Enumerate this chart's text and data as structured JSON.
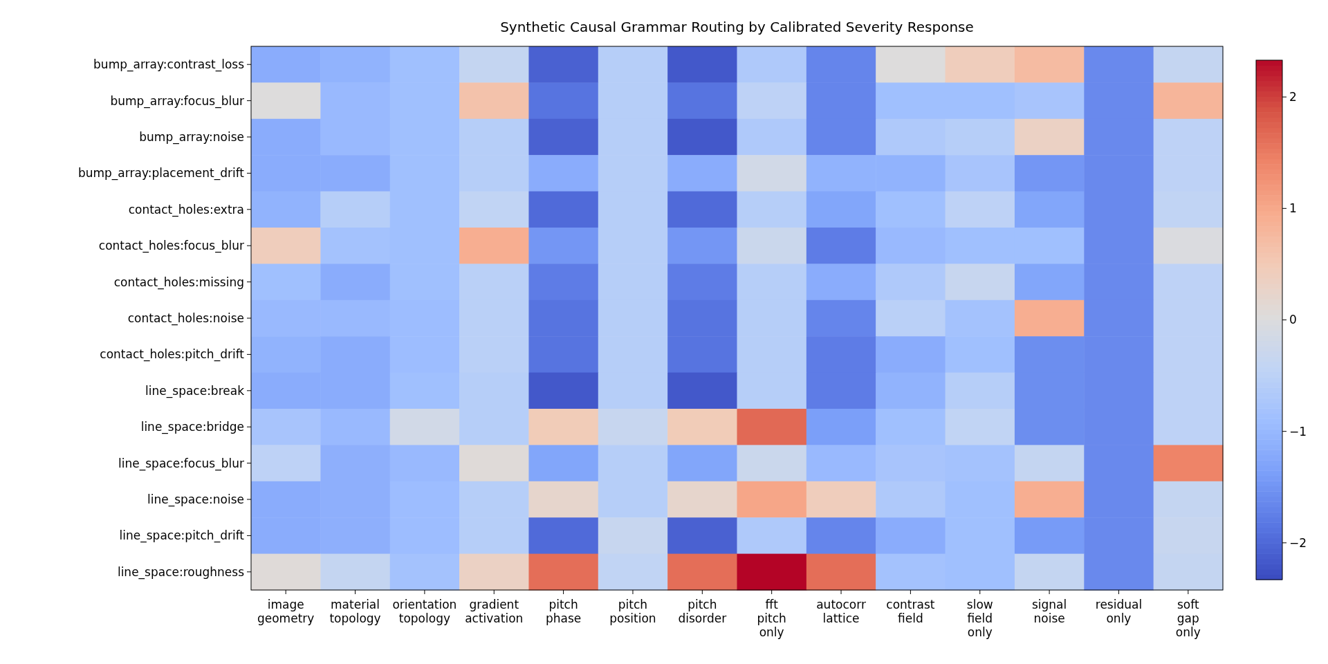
{
  "chart_data": {
    "type": "heatmap",
    "title": "Synthetic Causal Grammar Routing by Calibrated Severity Response",
    "categories": [
      "image geometry",
      "material topology",
      "orientation topology",
      "gradient activation",
      "pitch phase",
      "pitch position",
      "pitch disorder",
      "fft pitch only",
      "autocorr lattice",
      "contrast field",
      "slow field only",
      "signal noise",
      "residual only",
      "soft gap only"
    ],
    "y_categories": [
      "bump_array:contrast_loss",
      "bump_array:focus_blur",
      "bump_array:noise",
      "bump_array:placement_drift",
      "contact_holes:extra",
      "contact_holes:focus_blur",
      "contact_holes:missing",
      "contact_holes:noise",
      "contact_holes:pitch_drift",
      "line_space:break",
      "line_space:bridge",
      "line_space:focus_blur",
      "line_space:noise",
      "line_space:pitch_drift",
      "line_space:roughness"
    ],
    "cells": [
      [
        -1.2,
        -1.1,
        -0.9,
        -0.4,
        -2.1,
        -0.6,
        -2.2,
        -0.7,
        -1.7,
        0.0,
        0.4,
        0.7,
        -1.65,
        -0.4
      ],
      [
        0.0,
        -1.0,
        -0.9,
        0.6,
        -1.9,
        -0.6,
        -1.9,
        -0.5,
        -1.7,
        -0.9,
        -0.9,
        -0.8,
        -1.65,
        0.8
      ],
      [
        -1.2,
        -1.0,
        -0.9,
        -0.6,
        -2.1,
        -0.6,
        -2.2,
        -0.7,
        -1.7,
        -0.7,
        -0.6,
        0.3,
        -1.65,
        -0.5
      ],
      [
        -1.2,
        -1.2,
        -0.9,
        -0.6,
        -1.2,
        -0.6,
        -1.2,
        -0.2,
        -1.1,
        -1.1,
        -0.8,
        -1.5,
        -1.65,
        -0.5
      ],
      [
        -1.1,
        -0.6,
        -0.9,
        -0.45,
        -2.0,
        -0.6,
        -2.0,
        -0.6,
        -1.3,
        -0.9,
        -0.5,
        -1.3,
        -1.65,
        -0.45
      ],
      [
        0.4,
        -0.85,
        -0.9,
        0.9,
        -1.5,
        -0.6,
        -1.5,
        -0.3,
        -1.8,
        -1.0,
        -0.9,
        -0.9,
        -1.65,
        -0.05
      ],
      [
        -0.9,
        -1.2,
        -0.9,
        -0.55,
        -1.8,
        -0.6,
        -1.8,
        -0.6,
        -1.2,
        -0.7,
        -0.35,
        -1.3,
        -1.65,
        -0.5
      ],
      [
        -1.0,
        -1.0,
        -0.95,
        -0.55,
        -1.9,
        -0.6,
        -1.9,
        -0.6,
        -1.7,
        -0.55,
        -0.85,
        0.9,
        -1.65,
        -0.5
      ],
      [
        -1.1,
        -1.2,
        -0.95,
        -0.55,
        -1.9,
        -0.6,
        -1.9,
        -0.6,
        -1.8,
        -1.2,
        -0.9,
        -1.6,
        -1.65,
        -0.5
      ],
      [
        -1.2,
        -1.2,
        -0.9,
        -0.6,
        -2.2,
        -0.6,
        -2.2,
        -0.6,
        -1.8,
        -1.1,
        -0.6,
        -1.6,
        -1.65,
        -0.5
      ],
      [
        -0.8,
        -1.0,
        -0.2,
        -0.6,
        0.45,
        -0.35,
        0.45,
        1.65,
        -1.4,
        -0.9,
        -0.45,
        -1.6,
        -1.65,
        -0.5
      ],
      [
        -0.5,
        -1.15,
        -1.0,
        0.05,
        -1.3,
        -0.6,
        -1.3,
        -0.3,
        -1.0,
        -0.8,
        -0.85,
        -0.4,
        -1.65,
        1.4
      ],
      [
        -1.2,
        -1.15,
        -0.95,
        -0.6,
        0.2,
        -0.6,
        0.2,
        1.0,
        0.4,
        -0.7,
        -0.9,
        0.9,
        -1.65,
        -0.4
      ],
      [
        -1.2,
        -1.15,
        -0.95,
        -0.6,
        -2.0,
        -0.35,
        -2.1,
        -0.7,
        -1.7,
        -1.2,
        -0.9,
        -1.45,
        -1.65,
        -0.35
      ],
      [
        0.05,
        -0.4,
        -0.85,
        0.3,
        1.6,
        -0.45,
        1.6,
        2.33,
        1.6,
        -0.85,
        -0.9,
        -0.4,
        -1.65,
        -0.4
      ]
    ],
    "clim": [
      -2.33,
      2.33
    ],
    "cticks": [
      -2,
      -1,
      0,
      1,
      2
    ]
  }
}
